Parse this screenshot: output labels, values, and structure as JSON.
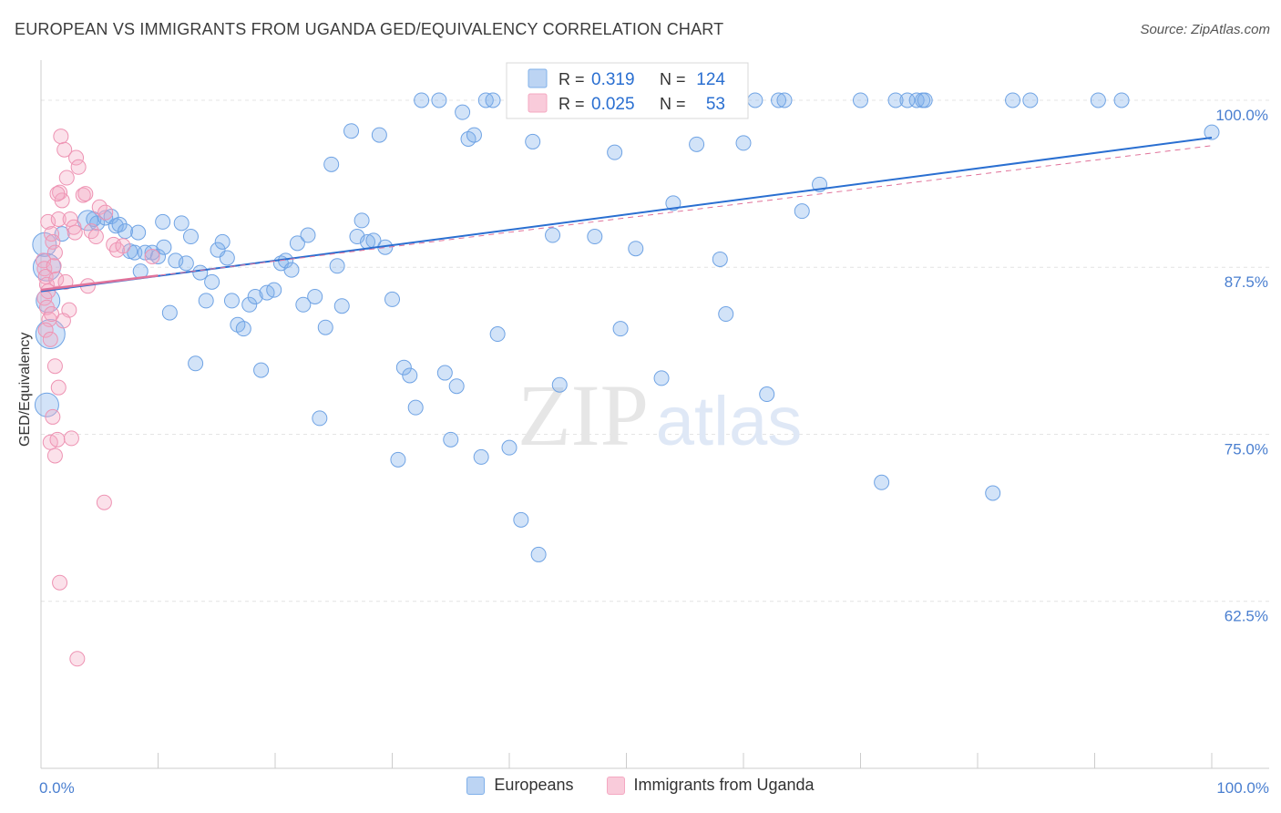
{
  "title": "EUROPEAN VS IMMIGRANTS FROM UGANDA GED/EQUIVALENCY CORRELATION CHART",
  "source": "Source: ZipAtlas.com",
  "watermark": {
    "zip": "ZIP",
    "atlas": "atlas"
  },
  "chart_data": {
    "type": "scatter",
    "title": "EUROPEAN VS IMMIGRANTS FROM UGANDA GED/EQUIVALENCY CORRELATION CHART",
    "xlabel": "",
    "ylabel": "GED/Equivalency",
    "xlim": [
      0,
      100
    ],
    "ylim": [
      50,
      103
    ],
    "x_tick_labels": [
      {
        "value": 0,
        "label": "0.0%"
      },
      {
        "value": 100,
        "label": "100.0%"
      }
    ],
    "y_tick_labels": [
      {
        "value": 100,
        "label": "100.0%"
      },
      {
        "value": 87.5,
        "label": "87.5%"
      },
      {
        "value": 75,
        "label": "75.0%"
      },
      {
        "value": 62.5,
        "label": "62.5%"
      }
    ],
    "legend_position": "top-center",
    "series": [
      {
        "name": "Europeans",
        "color": "#7fb0ea",
        "line_color": "#2a6fd1",
        "R": "0.319",
        "N": "124",
        "trend": [
          [
            0,
            85.7
          ],
          [
            100,
            97.2
          ]
        ],
        "points": [
          [
            0.3,
            89.2
          ],
          [
            0.5,
            87.5
          ],
          [
            0.6,
            85.0
          ],
          [
            0.8,
            82.5
          ],
          [
            0.5,
            77.2
          ],
          [
            1.8,
            90.0
          ],
          [
            4.0,
            91.0
          ],
          [
            4.5,
            91.1
          ],
          [
            4.8,
            90.8
          ],
          [
            5.5,
            91.2
          ],
          [
            6.0,
            91.3
          ],
          [
            6.4,
            90.6
          ],
          [
            6.7,
            90.7
          ],
          [
            7.2,
            90.2
          ],
          [
            7.6,
            88.7
          ],
          [
            8.0,
            88.6
          ],
          [
            8.3,
            90.1
          ],
          [
            8.5,
            87.2
          ],
          [
            8.9,
            88.6
          ],
          [
            9.5,
            88.6
          ],
          [
            10.0,
            88.3
          ],
          [
            10.4,
            90.9
          ],
          [
            10.5,
            89.0
          ],
          [
            11.0,
            84.1
          ],
          [
            11.5,
            88.0
          ],
          [
            12.0,
            90.8
          ],
          [
            12.4,
            87.8
          ],
          [
            12.8,
            89.8
          ],
          [
            13.2,
            80.3
          ],
          [
            13.6,
            87.1
          ],
          [
            14.1,
            85.0
          ],
          [
            14.6,
            86.4
          ],
          [
            15.1,
            88.8
          ],
          [
            15.5,
            89.4
          ],
          [
            15.9,
            88.2
          ],
          [
            16.3,
            85.0
          ],
          [
            16.8,
            83.2
          ],
          [
            17.3,
            82.9
          ],
          [
            17.8,
            84.7
          ],
          [
            18.3,
            85.3
          ],
          [
            18.8,
            79.8
          ],
          [
            19.3,
            85.6
          ],
          [
            19.9,
            85.8
          ],
          [
            20.5,
            87.8
          ],
          [
            20.9,
            88.0
          ],
          [
            21.4,
            87.3
          ],
          [
            21.9,
            89.3
          ],
          [
            22.4,
            84.7
          ],
          [
            22.8,
            89.9
          ],
          [
            23.4,
            85.3
          ],
          [
            23.8,
            76.2
          ],
          [
            24.3,
            83.0
          ],
          [
            24.8,
            95.2
          ],
          [
            25.3,
            87.6
          ],
          [
            25.7,
            84.6
          ],
          [
            26.5,
            97.7
          ],
          [
            27.0,
            89.8
          ],
          [
            27.4,
            91.0
          ],
          [
            27.9,
            89.4
          ],
          [
            28.4,
            89.5
          ],
          [
            28.9,
            97.4
          ],
          [
            29.4,
            89.0
          ],
          [
            30.0,
            85.1
          ],
          [
            30.5,
            73.1
          ],
          [
            31.0,
            80.0
          ],
          [
            31.5,
            79.4
          ],
          [
            32.0,
            77.0
          ],
          [
            32.5,
            100.0
          ],
          [
            34.0,
            100.0
          ],
          [
            34.5,
            79.6
          ],
          [
            35.0,
            74.6
          ],
          [
            35.5,
            78.6
          ],
          [
            36.0,
            99.1
          ],
          [
            36.5,
            97.1
          ],
          [
            37.0,
            97.4
          ],
          [
            37.6,
            73.3
          ],
          [
            38.0,
            100.0
          ],
          [
            38.6,
            100.0
          ],
          [
            39.0,
            82.5
          ],
          [
            40.0,
            74.0
          ],
          [
            40.5,
            100.0
          ],
          [
            41.0,
            68.6
          ],
          [
            42.0,
            96.9
          ],
          [
            42.5,
            66.0
          ],
          [
            43.0,
            100.0
          ],
          [
            43.7,
            89.9
          ],
          [
            44.3,
            78.7
          ],
          [
            45.0,
            100.0
          ],
          [
            47.0,
            100.0
          ],
          [
            47.3,
            89.8
          ],
          [
            48.0,
            100.0
          ],
          [
            49.0,
            96.1
          ],
          [
            49.5,
            82.9
          ],
          [
            50.0,
            100.0
          ],
          [
            50.8,
            88.9
          ],
          [
            52.0,
            100.0
          ],
          [
            53.0,
            79.2
          ],
          [
            54.0,
            92.3
          ],
          [
            55.0,
            100.0
          ],
          [
            56.0,
            96.7
          ],
          [
            57.5,
            100.0
          ],
          [
            58.0,
            88.1
          ],
          [
            58.5,
            84.0
          ],
          [
            60.0,
            96.8
          ],
          [
            61.0,
            100.0
          ],
          [
            62.0,
            78.0
          ],
          [
            63.0,
            100.0
          ],
          [
            63.5,
            100.0
          ],
          [
            65.0,
            91.7
          ],
          [
            66.5,
            93.7
          ],
          [
            70.0,
            100.0
          ],
          [
            71.8,
            71.4
          ],
          [
            73.0,
            100.0
          ],
          [
            74.0,
            100.0
          ],
          [
            74.8,
            100.0
          ],
          [
            75.3,
            100.0
          ],
          [
            75.5,
            100.0
          ],
          [
            83.0,
            100.0
          ],
          [
            84.5,
            100.0
          ],
          [
            81.3,
            70.6
          ],
          [
            90.3,
            100.0
          ],
          [
            92.3,
            100.0
          ],
          [
            100.0,
            97.6
          ]
        ]
      },
      {
        "name": "Immigrants from Uganda",
        "color": "#f4a8c2",
        "line_color": "#e0729a",
        "R": "0.025",
        "N": "53",
        "trend": [
          [
            0,
            85.8
          ],
          [
            100,
            96.6
          ]
        ],
        "points": [
          [
            0.2,
            88.0
          ],
          [
            0.3,
            87.4
          ],
          [
            0.4,
            86.8
          ],
          [
            0.5,
            86.2
          ],
          [
            0.6,
            85.7
          ],
          [
            0.3,
            85.2
          ],
          [
            0.5,
            84.5
          ],
          [
            0.7,
            83.6
          ],
          [
            0.4,
            82.8
          ],
          [
            0.8,
            82.1
          ],
          [
            0.6,
            90.9
          ],
          [
            0.9,
            90.0
          ],
          [
            1.0,
            89.4
          ],
          [
            1.2,
            88.6
          ],
          [
            1.1,
            87.6
          ],
          [
            1.3,
            86.6
          ],
          [
            1.5,
            91.1
          ],
          [
            1.6,
            93.1
          ],
          [
            1.8,
            92.5
          ],
          [
            1.4,
            93.0
          ],
          [
            1.7,
            97.3
          ],
          [
            2.0,
            96.3
          ],
          [
            2.2,
            94.2
          ],
          [
            2.5,
            91.1
          ],
          [
            2.8,
            90.5
          ],
          [
            3.0,
            95.7
          ],
          [
            3.2,
            95.0
          ],
          [
            3.6,
            92.9
          ],
          [
            3.8,
            93.0
          ],
          [
            4.0,
            86.1
          ],
          [
            4.3,
            90.2
          ],
          [
            4.7,
            89.8
          ],
          [
            5.0,
            92.0
          ],
          [
            5.5,
            91.6
          ],
          [
            6.2,
            89.2
          ],
          [
            6.5,
            88.8
          ],
          [
            7.0,
            89.1
          ],
          [
            9.5,
            88.3
          ],
          [
            1.2,
            80.1
          ],
          [
            1.5,
            78.5
          ],
          [
            1.0,
            76.3
          ],
          [
            0.8,
            74.4
          ],
          [
            1.2,
            73.4
          ],
          [
            1.4,
            74.6
          ],
          [
            2.6,
            74.7
          ],
          [
            5.4,
            69.9
          ],
          [
            1.6,
            63.9
          ],
          [
            3.1,
            58.2
          ],
          [
            2.4,
            84.3
          ],
          [
            1.9,
            83.5
          ],
          [
            0.9,
            84.0
          ],
          [
            2.1,
            86.4
          ],
          [
            2.9,
            90.1
          ]
        ]
      }
    ]
  }
}
